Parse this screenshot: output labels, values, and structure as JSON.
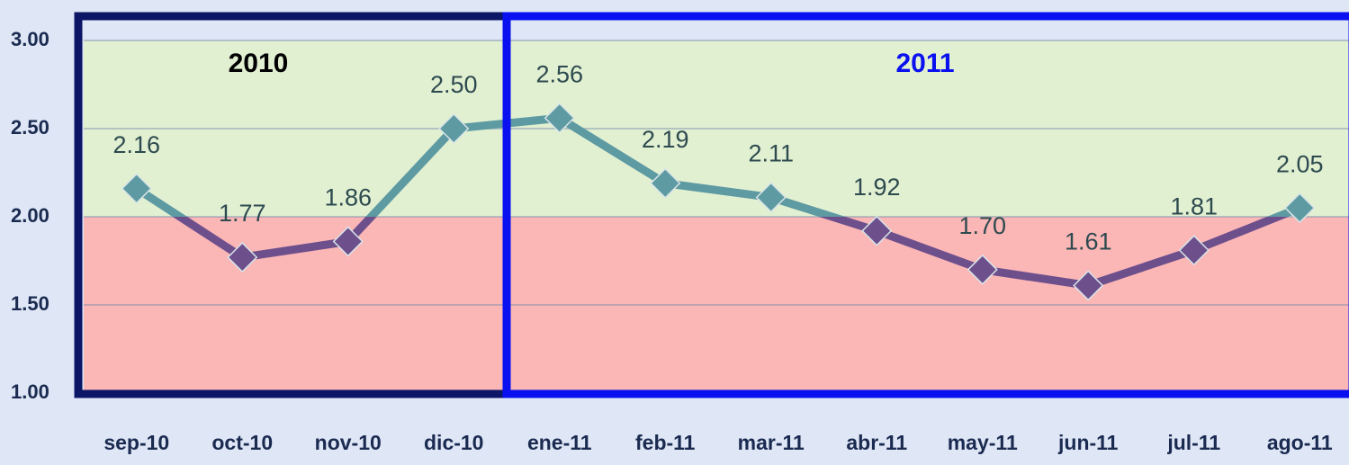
{
  "chart_data": {
    "type": "line",
    "categories": [
      "sep-10",
      "oct-10",
      "nov-10",
      "dic-10",
      "ene-11",
      "feb-11",
      "mar-11",
      "abr-11",
      "may-11",
      "jun-11",
      "jul-11",
      "ago-11"
    ],
    "values": [
      2.16,
      1.77,
      1.86,
      2.5,
      2.56,
      2.19,
      2.11,
      1.92,
      1.7,
      1.61,
      1.81,
      2.05
    ],
    "value_labels": [
      "2.16",
      "1.77",
      "1.86",
      "2.50",
      "2.56",
      "2.19",
      "2.11",
      "1.92",
      "1.70",
      "1.61",
      "1.81",
      "2.05"
    ],
    "ylim": [
      1,
      3
    ],
    "yticks": [
      {
        "value": 1,
        "label": "1.00"
      },
      {
        "value": 1.5,
        "label": "1.50"
      },
      {
        "value": 2,
        "label": "2.00"
      },
      {
        "value": 2.5,
        "label": "2.50"
      },
      {
        "value": 3,
        "label": "3.00"
      }
    ],
    "grid": true,
    "bands": [
      {
        "from": 2,
        "to": 3,
        "color": "#e2f0d2",
        "line_color": "#5e9aa2"
      },
      {
        "from": 1,
        "to": 2,
        "color": "#fbb6b6",
        "line_color": "#6d4f8c"
      }
    ],
    "groups": [
      {
        "label": "2010",
        "span": 4,
        "color": "#0b1667",
        "text_color": "#000000"
      },
      {
        "label": "2011",
        "span": 8,
        "color": "#0a10f0",
        "text_color": "#0a10f0"
      }
    ]
  }
}
